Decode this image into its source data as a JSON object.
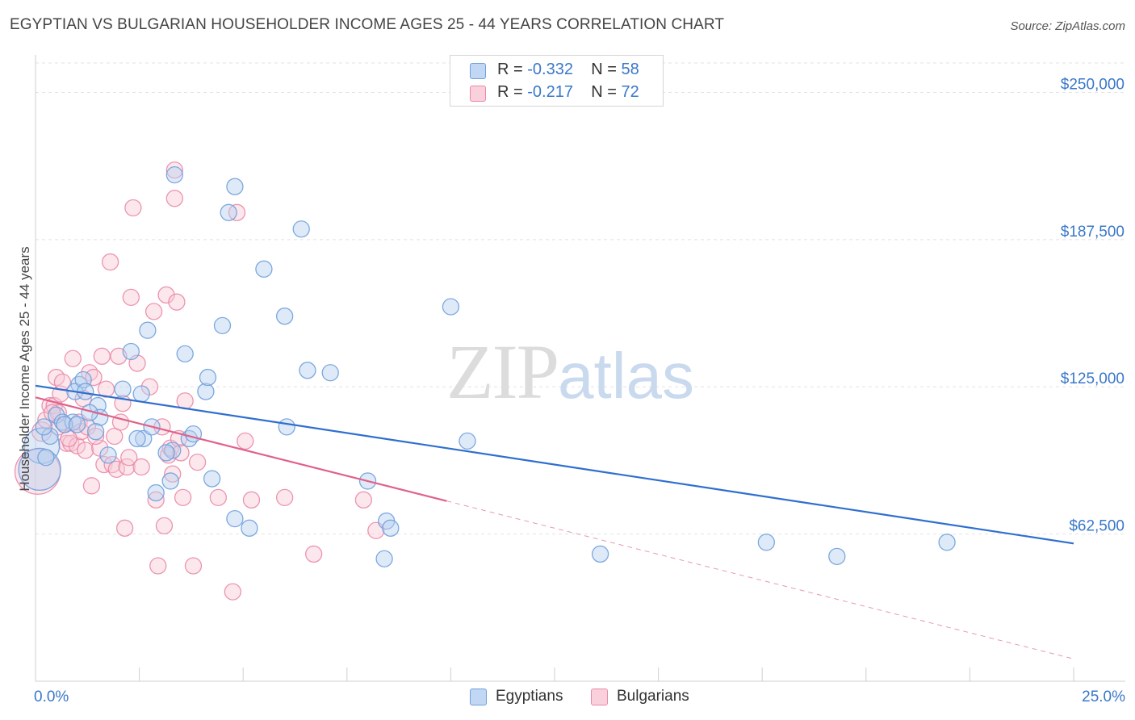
{
  "title": "EGYPTIAN VS BULGARIAN HOUSEHOLDER INCOME AGES 25 - 44 YEARS CORRELATION CHART",
  "source": "Source: ZipAtlas.com",
  "watermark": {
    "zip": "ZIP",
    "atlas": "atlas"
  },
  "legend": {
    "rows": [
      {
        "r_label": "R = ",
        "r_value": "-0.332",
        "n_label": "N = ",
        "n_value": "58",
        "color": "#8fb6e8"
      },
      {
        "r_label": "R = ",
        "r_value": " -0.217",
        "n_label": "N = ",
        "n_value": "72",
        "color": "#f4a7be"
      }
    ]
  },
  "bottom_legend": {
    "egyptians": "Egyptians",
    "bulgarians": "Bulgarians"
  },
  "chart_data": {
    "type": "scatter",
    "ylabel": "Householder Income Ages 25 - 44 years",
    "xlim": [
      0,
      25
    ],
    "ylim": [
      0,
      262500
    ],
    "x_ticks": [
      "0.0%",
      "25.0%"
    ],
    "y_ticks": [
      {
        "value": 62500,
        "label": "$62,500"
      },
      {
        "value": 125000,
        "label": "$125,000"
      },
      {
        "value": 187500,
        "label": "$187,500"
      },
      {
        "value": 250000,
        "label": "$250,000"
      }
    ],
    "grid": true,
    "series": [
      {
        "name": "Egyptians",
        "color": "#6fa0dd",
        "fill": "#b8d0f0",
        "trend": {
          "x0": 0,
          "y0": 125500,
          "x1": 25,
          "y1": 58500,
          "dashed_from": null
        },
        "points": [
          [
            0.15,
            100000,
            22
          ],
          [
            0.1,
            90000,
            26
          ],
          [
            0.35,
            104000,
            10
          ],
          [
            0.5,
            113000,
            10
          ],
          [
            0.65,
            110000,
            10
          ],
          [
            0.9,
            110000,
            10
          ],
          [
            1.05,
            126000,
            10
          ],
          [
            0.95,
            123000,
            10
          ],
          [
            1.15,
            128000,
            10
          ],
          [
            1.2,
            123000,
            10
          ],
          [
            1.5,
            117000,
            10
          ],
          [
            1.55,
            112000,
            10
          ],
          [
            1.45,
            106000,
            10
          ],
          [
            2.1,
            124000,
            10
          ],
          [
            2.55,
            122000,
            10
          ],
          [
            2.3,
            140000,
            10
          ],
          [
            2.7,
            149000,
            10
          ],
          [
            2.6,
            103000,
            10
          ],
          [
            2.45,
            103000,
            10
          ],
          [
            2.8,
            108000,
            10
          ],
          [
            3.3,
            98000,
            10
          ],
          [
            3.25,
            85000,
            10
          ],
          [
            2.9,
            80000,
            10
          ],
          [
            3.35,
            215000,
            10
          ],
          [
            3.6,
            139000,
            10
          ],
          [
            3.7,
            103000,
            10
          ],
          [
            3.8,
            105000,
            10
          ],
          [
            4.1,
            123000,
            10
          ],
          [
            4.15,
            129000,
            10
          ],
          [
            4.25,
            86000,
            10
          ],
          [
            4.5,
            151000,
            10
          ],
          [
            4.65,
            199000,
            10
          ],
          [
            4.8,
            69000,
            10
          ],
          [
            4.8,
            210000,
            10
          ],
          [
            5.15,
            65000,
            10
          ],
          [
            5.5,
            175000,
            10
          ],
          [
            6.0,
            155000,
            10
          ],
          [
            6.05,
            108000,
            10
          ],
          [
            6.4,
            192000,
            10
          ],
          [
            6.55,
            132000,
            10
          ],
          [
            7.1,
            131000,
            10
          ],
          [
            8.0,
            85000,
            10
          ],
          [
            8.4,
            52000,
            10
          ],
          [
            8.45,
            68000,
            10
          ],
          [
            8.55,
            65000,
            10
          ],
          [
            10.0,
            159000,
            10
          ],
          [
            10.4,
            102000,
            10
          ],
          [
            13.6,
            54000,
            10
          ],
          [
            17.6,
            59000,
            10
          ],
          [
            19.3,
            53000,
            10
          ],
          [
            21.95,
            59000,
            10
          ],
          [
            1.75,
            96000,
            10
          ],
          [
            0.2,
            108000,
            10
          ],
          [
            0.7,
            109000,
            10
          ],
          [
            1.0,
            109000,
            10
          ],
          [
            1.3,
            114000,
            10
          ],
          [
            3.15,
            97000,
            10
          ],
          [
            0.25,
            95000,
            10
          ]
        ]
      },
      {
        "name": "Bulgarians",
        "color": "#ea89a7",
        "fill": "#f8c9d7",
        "trend": {
          "x0": 0,
          "y0": 120500,
          "x1": 25,
          "y1": 9500,
          "dashed_from": 9.9
        },
        "points": [
          [
            0.05,
            89000,
            28
          ],
          [
            0.15,
            106000,
            12
          ],
          [
            0.25,
            111000,
            10
          ],
          [
            0.35,
            117000,
            10
          ],
          [
            0.45,
            117000,
            10
          ],
          [
            0.5,
            129000,
            10
          ],
          [
            0.55,
            114000,
            10
          ],
          [
            0.6,
            122000,
            10
          ],
          [
            0.65,
            127000,
            10
          ],
          [
            0.7,
            109000,
            10
          ],
          [
            0.75,
            101000,
            10
          ],
          [
            0.85,
            101000,
            10
          ],
          [
            0.9,
            137000,
            10
          ],
          [
            1.0,
            100000,
            10
          ],
          [
            1.05,
            110000,
            10
          ],
          [
            1.1,
            106000,
            10
          ],
          [
            1.15,
            120000,
            10
          ],
          [
            1.2,
            98000,
            10
          ],
          [
            1.25,
            108000,
            10
          ],
          [
            1.35,
            83000,
            10
          ],
          [
            1.3,
            131000,
            10
          ],
          [
            1.4,
            129000,
            10
          ],
          [
            1.55,
            99000,
            10
          ],
          [
            1.6,
            138000,
            10
          ],
          [
            1.65,
            92000,
            10
          ],
          [
            1.7,
            124000,
            10
          ],
          [
            1.8,
            178000,
            10
          ],
          [
            1.85,
            92000,
            10
          ],
          [
            1.9,
            104000,
            10
          ],
          [
            1.95,
            90000,
            10
          ],
          [
            2.0,
            138000,
            10
          ],
          [
            2.05,
            110000,
            10
          ],
          [
            2.15,
            65000,
            10
          ],
          [
            2.2,
            91000,
            10
          ],
          [
            2.25,
            95000,
            10
          ],
          [
            2.3,
            163000,
            10
          ],
          [
            2.35,
            201000,
            10
          ],
          [
            2.45,
            135000,
            10
          ],
          [
            2.55,
            91000,
            10
          ],
          [
            2.75,
            125000,
            10
          ],
          [
            2.85,
            157000,
            10
          ],
          [
            2.9,
            77000,
            10
          ],
          [
            2.95,
            49000,
            10
          ],
          [
            3.1,
            66000,
            10
          ],
          [
            3.15,
            164000,
            10
          ],
          [
            3.2,
            96000,
            10
          ],
          [
            3.25,
            99000,
            10
          ],
          [
            3.3,
            88000,
            10
          ],
          [
            3.4,
            161000,
            10
          ],
          [
            3.45,
            103000,
            10
          ],
          [
            3.5,
            97000,
            10
          ],
          [
            3.35,
            217000,
            10
          ],
          [
            3.35,
            205000,
            10
          ],
          [
            3.55,
            78000,
            10
          ],
          [
            3.6,
            119000,
            10
          ],
          [
            3.8,
            49000,
            10
          ],
          [
            3.9,
            93000,
            10
          ],
          [
            4.4,
            78000,
            10
          ],
          [
            4.75,
            38000,
            10
          ],
          [
            4.85,
            199000,
            10
          ],
          [
            5.05,
            102000,
            10
          ],
          [
            5.2,
            77000,
            10
          ],
          [
            6.0,
            78000,
            10
          ],
          [
            6.7,
            54000,
            10
          ],
          [
            7.9,
            77000,
            10
          ],
          [
            8.2,
            64000,
            10
          ],
          [
            0.4,
            114000,
            10
          ],
          [
            0.55,
            108000,
            10
          ],
          [
            0.8,
            103000,
            10
          ],
          [
            1.45,
            104000,
            10
          ],
          [
            2.1,
            118000,
            10
          ],
          [
            3.05,
            108000,
            10
          ]
        ]
      }
    ]
  }
}
